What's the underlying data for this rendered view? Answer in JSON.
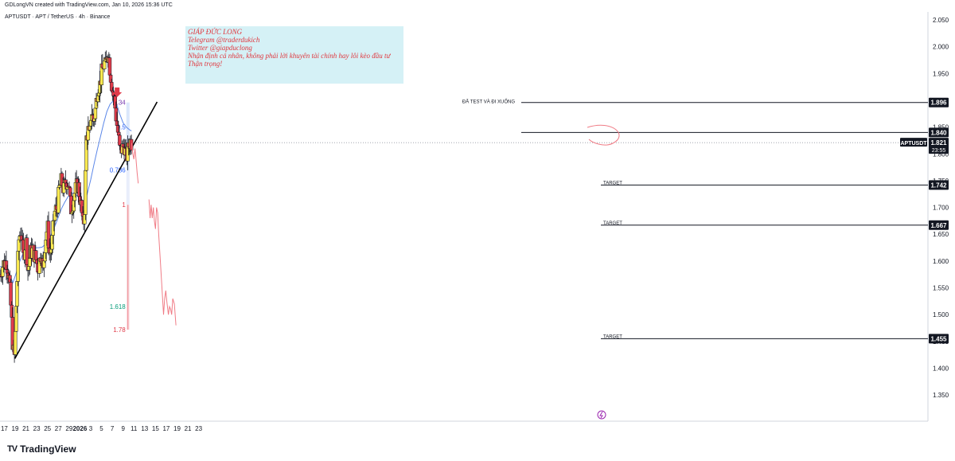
{
  "header": {
    "credit": "GDLongVN created with TradingView.com, Jan 10, 2026 15:36 UTC",
    "symbol_line": "APTUSDT · APT / TetherUS · 4h · Binance"
  },
  "note": {
    "lines": [
      "GIÁP ĐỨC LONG",
      "Telegram @traderdukich",
      "Twitter @giapduclong",
      "Nhận định cá nhân, không phải lời khuyên tài chính hay lôi kèo đầu tư",
      "Thận trọng!"
    ]
  },
  "brand": {
    "logo": "TV",
    "name": "TradingView"
  },
  "colors": {
    "up": "#fce94f",
    "down": "#e03b4a",
    "wick": "#131722",
    "ma": "#5b87e8",
    "trend": "#000000",
    "forecast": "#f07c86",
    "fib_blue": "#2962ff",
    "fib_green": "#0a9e7c",
    "fib_red": "#e03b4a",
    "fib_purple": "#7b3fb2"
  },
  "chart_data": {
    "type": "candlestick",
    "symbol": "APTUSDT",
    "timeframe": "4h",
    "ylim": [
      1.31,
      2.065
    ],
    "y_ticks": [
      1.35,
      1.4,
      1.45,
      1.5,
      1.55,
      1.6,
      1.65,
      1.7,
      1.75,
      1.8,
      1.85,
      1.9,
      1.95,
      2.0,
      2.05
    ],
    "y_tick_labels": [
      "1.350",
      "1.400",
      "1.450",
      "1.500",
      "1.550",
      "1.600",
      "1.650",
      "1.700",
      "1.750",
      "1.800",
      "1.850",
      "1.900",
      "1.950",
      "2.000",
      "2.050"
    ],
    "x_range": [
      16.2,
      24.75
    ],
    "x_ticks": [
      {
        "x": 17,
        "label": "17"
      },
      {
        "x": 19,
        "label": "19"
      },
      {
        "x": 21,
        "label": "21"
      },
      {
        "x": 23,
        "label": "23"
      },
      {
        "x": 25,
        "label": "25"
      },
      {
        "x": 27,
        "label": "27"
      },
      {
        "x": 29,
        "label": "29"
      },
      {
        "x": 31,
        "label": "2026"
      },
      {
        "x": 33,
        "label": "3"
      },
      {
        "x": 35,
        "label": "5"
      },
      {
        "x": 37,
        "label": "7"
      },
      {
        "x": 39,
        "label": "9"
      },
      {
        "x": 41,
        "label": "11"
      },
      {
        "x": 43,
        "label": "13"
      },
      {
        "x": 45,
        "label": "15"
      },
      {
        "x": 47,
        "label": "17"
      },
      {
        "x": 49,
        "label": "19"
      },
      {
        "x": 51,
        "label": "21"
      },
      {
        "x": 53,
        "label": "23"
      }
    ],
    "close_path": [
      [
        16.2,
        1.575
      ],
      [
        16.8,
        1.595
      ],
      [
        17.4,
        1.6
      ],
      [
        17.9,
        1.565
      ],
      [
        18.3,
        1.5
      ],
      [
        18.6,
        1.435
      ],
      [
        18.9,
        1.42
      ],
      [
        19.3,
        1.55
      ],
      [
        19.7,
        1.64
      ],
      [
        20.1,
        1.66
      ],
      [
        20.5,
        1.605
      ],
      [
        21.0,
        1.64
      ],
      [
        21.4,
        1.58
      ],
      [
        21.8,
        1.615
      ],
      [
        22.3,
        1.62
      ],
      [
        22.8,
        1.605
      ],
      [
        23.3,
        1.585
      ],
      [
        23.8,
        1.62
      ],
      [
        24.2,
        1.58
      ],
      [
        24.6,
        1.64
      ],
      [
        25.0,
        1.665
      ],
      [
        25.4,
        1.61
      ],
      [
        25.8,
        1.63
      ],
      [
        26.3,
        1.69
      ],
      [
        26.8,
        1.7
      ],
      [
        27.2,
        1.735
      ],
      [
        27.6,
        1.75
      ],
      [
        28.0,
        1.73
      ],
      [
        28.4,
        1.75
      ],
      [
        28.9,
        1.745
      ],
      [
        29.3,
        1.695
      ],
      [
        29.7,
        1.71
      ],
      [
        30.1,
        1.73
      ],
      [
        30.6,
        1.745
      ],
      [
        31.0,
        1.72
      ],
      [
        31.3,
        1.695
      ],
      [
        31.6,
        1.66
      ],
      [
        31.9,
        1.705
      ],
      [
        32.2,
        1.83
      ],
      [
        32.5,
        1.845
      ],
      [
        32.8,
        1.825
      ],
      [
        33.1,
        1.885
      ],
      [
        33.5,
        1.86
      ],
      [
        33.9,
        1.885
      ],
      [
        34.3,
        1.925
      ],
      [
        34.7,
        1.93
      ],
      [
        35.1,
        1.955
      ],
      [
        35.5,
        1.97
      ],
      [
        35.8,
        1.96
      ],
      [
        36.0,
        1.99
      ],
      [
        36.3,
        1.985
      ],
      [
        36.6,
        1.955
      ],
      [
        37.0,
        1.92
      ],
      [
        37.4,
        1.9
      ],
      [
        37.8,
        1.86
      ],
      [
        38.1,
        1.835
      ],
      [
        38.4,
        1.805
      ],
      [
        38.8,
        1.81
      ],
      [
        39.2,
        1.815
      ],
      [
        39.6,
        1.79
      ],
      [
        40.0,
        1.815
      ],
      [
        40.3,
        1.825
      ],
      [
        40.55,
        1.821
      ]
    ],
    "ma_line": [
      [
        16.2,
        1.59
      ],
      [
        16.8,
        1.588
      ],
      [
        17.4,
        1.582
      ],
      [
        18.0,
        1.573
      ],
      [
        18.6,
        1.56
      ],
      [
        19.2,
        1.578
      ],
      [
        19.8,
        1.598
      ],
      [
        20.4,
        1.612
      ],
      [
        21.0,
        1.619
      ],
      [
        21.6,
        1.622
      ],
      [
        22.2,
        1.624
      ],
      [
        22.8,
        1.625
      ],
      [
        23.4,
        1.625
      ],
      [
        24.0,
        1.626
      ],
      [
        24.6,
        1.631
      ],
      [
        25.2,
        1.64
      ],
      [
        25.8,
        1.652
      ],
      [
        26.4,
        1.666
      ],
      [
        27.0,
        1.682
      ],
      [
        27.6,
        1.698
      ],
      [
        28.2,
        1.71
      ],
      [
        28.8,
        1.72
      ],
      [
        29.4,
        1.726
      ],
      [
        30.0,
        1.727
      ],
      [
        30.6,
        1.721
      ],
      [
        31.2,
        1.708
      ],
      [
        31.8,
        1.706
      ],
      [
        32.4,
        1.727
      ],
      [
        33.0,
        1.752
      ],
      [
        33.6,
        1.78
      ],
      [
        34.2,
        1.807
      ],
      [
        34.8,
        1.832
      ],
      [
        35.4,
        1.857
      ],
      [
        36.0,
        1.879
      ],
      [
        36.6,
        1.893
      ],
      [
        37.2,
        1.899
      ],
      [
        37.8,
        1.893
      ],
      [
        38.4,
        1.874
      ],
      [
        39.0,
        1.858
      ],
      [
        39.6,
        1.85
      ],
      [
        40.2,
        1.845
      ],
      [
        40.55,
        1.843
      ]
    ],
    "trendline": [
      [
        18.95,
        1.418
      ],
      [
        45.3,
        1.897
      ]
    ],
    "price_levels": [
      {
        "value": 1.896,
        "label": "1.896"
      },
      {
        "value": 1.84,
        "label": "1.840"
      },
      {
        "value": 1.742,
        "label": "1.742"
      },
      {
        "value": 1.667,
        "label": "1.667"
      },
      {
        "value": 1.455,
        "label": "1.455"
      }
    ],
    "current_price": {
      "symbol": "APTUSDT",
      "value": 1.821,
      "label": "1.821",
      "countdown": "23:55"
    },
    "fib_levels": [
      {
        "ratio": "0.34",
        "value": 1.896,
        "color": "#7b3fb2"
      },
      {
        "ratio": "0.5",
        "value": 1.85,
        "color": "#2962ff"
      },
      {
        "ratio": "0.786",
        "value": 1.77,
        "color": "#2962ff"
      },
      {
        "ratio": "1",
        "value": 1.705,
        "color": "#e03b4a"
      },
      {
        "ratio": "1.618",
        "value": 1.515,
        "color": "#0a9e7c"
      },
      {
        "ratio": "1.78",
        "value": 1.472,
        "color": "#e03b4a"
      }
    ],
    "fib_x": 39.9,
    "annotations": {
      "test_label": "ĐÃ TEST VÀ ĐI XUỐNG",
      "targets": [
        {
          "label": "TARGET",
          "value": 1.742
        },
        {
          "label": "TARGET",
          "value": 1.667
        },
        {
          "label": "TARGET",
          "value": 1.455
        }
      ],
      "arrow_at": [
        37.9,
        1.915
      ]
    },
    "forecast_path_1": [
      [
        40.6,
        1.82
      ],
      [
        40.8,
        1.8
      ],
      [
        41.0,
        1.79
      ],
      [
        41.2,
        1.81
      ],
      [
        41.4,
        1.79
      ],
      [
        41.6,
        1.765
      ],
      [
        41.8,
        1.745
      ]
    ],
    "forecast_path_2": [
      [
        43.8,
        1.715
      ],
      [
        44.0,
        1.68
      ],
      [
        44.2,
        1.705
      ],
      [
        44.4,
        1.68
      ],
      [
        44.6,
        1.7
      ],
      [
        44.8,
        1.675
      ],
      [
        45.0,
        1.66
      ],
      [
        45.2,
        1.7
      ],
      [
        45.4,
        1.69
      ],
      [
        45.6,
        1.65
      ],
      [
        45.9,
        1.6
      ],
      [
        46.2,
        1.55
      ],
      [
        46.5,
        1.5
      ],
      [
        46.7,
        1.53
      ],
      [
        46.9,
        1.545
      ],
      [
        47.1,
        1.525
      ],
      [
        47.4,
        1.5
      ],
      [
        47.6,
        1.515
      ],
      [
        47.8,
        1.51
      ],
      [
        48.0,
        1.5
      ],
      [
        48.2,
        1.53
      ],
      [
        48.5,
        1.52
      ],
      [
        48.8,
        1.48
      ]
    ]
  }
}
